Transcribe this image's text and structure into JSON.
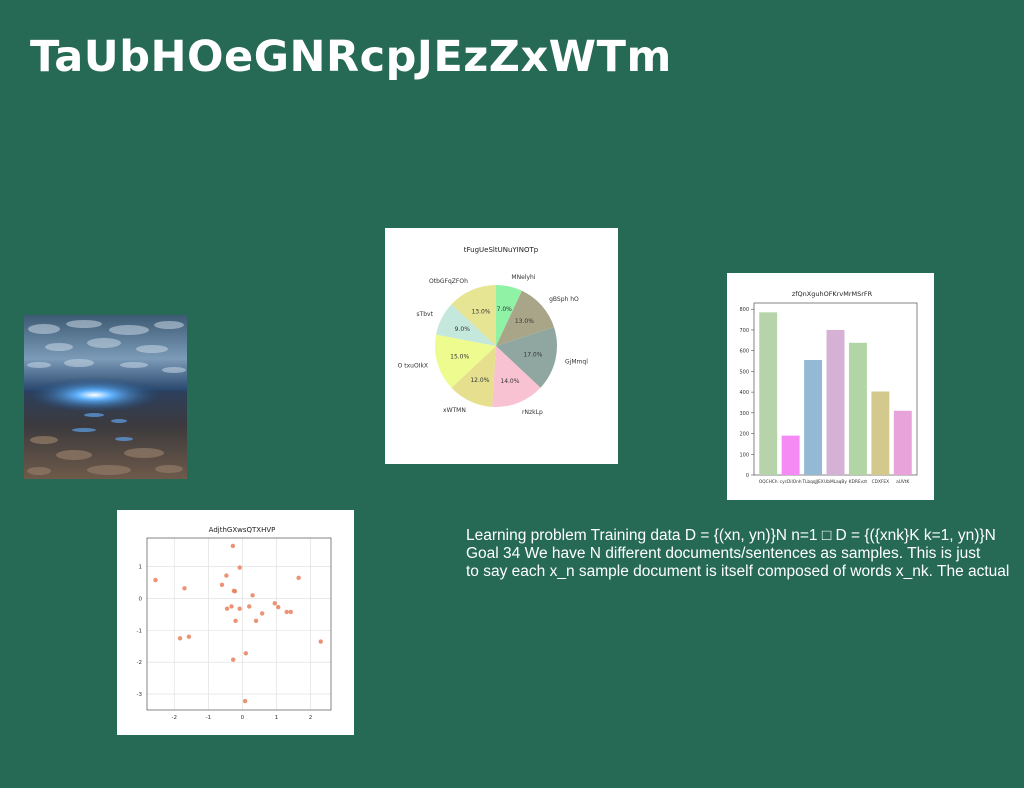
{
  "slide": {
    "title": "TaUbHOeGNRcpJEzZxWTm",
    "background": "#266a55",
    "text_lines": [
      "Learning problem Training data D = {(xn, yn)}N n=1 □ D = {({xnk}K k=1, yn)}N",
      "Goal 34 We have N different documents/sentences as samples. This is just",
      "to say each x_n sample document is itself composed of words x_nk. The actual"
    ]
  },
  "image": {
    "icon": "night-sky-over-tidal-flats-photo"
  },
  "chart_data": [
    {
      "type": "pie",
      "title": "tFugUeSltUNuYINOTp",
      "labels": [
        "MNelyhi",
        "gBSph hO",
        "GjMmql",
        "rNzkLp",
        "xWTMN",
        "O txuOIkX",
        "sTbvt",
        "OtbGFqZFOh"
      ],
      "values": [
        7.0,
        13.0,
        17.0,
        14.0,
        12.0,
        15.0,
        9.0,
        13.0
      ],
      "value_labels": [
        "7.0%",
        "13.0%",
        "17.0%",
        "14.0%",
        "12.0%",
        "15.0%",
        "9.0%",
        "13.0%"
      ],
      "colors": [
        "#8ff2a5",
        "#a8a588",
        "#8fa7a0",
        "#f9c2d2",
        "#e5df8e",
        "#eefb8e",
        "#c5e8dc",
        "#e6e594"
      ]
    },
    {
      "type": "bar",
      "title": "zfQnXguhOFKrvMrMSrFR",
      "categories": [
        "OQCHCh",
        "cycDiIOnh",
        "TLbqqJJEX",
        "UbMLaqBy",
        "KDREvzt",
        "CDXFEX",
        "aUVtK"
      ],
      "values": [
        785,
        190,
        555,
        700,
        638,
        403,
        310
      ],
      "colors": [
        "#b6d3a9",
        "#f58af5",
        "#93b9d4",
        "#d6b1d6",
        "#b1d5a4",
        "#d3c98d",
        "#e7a3da"
      ],
      "yticks": [
        0,
        100,
        200,
        300,
        400,
        500,
        600,
        700,
        800
      ],
      "ylim": [
        0,
        830
      ]
    },
    {
      "type": "scatter",
      "title": "AdjthGXwsQTXHVP",
      "xlim": [
        -2.8,
        2.6
      ],
      "ylim": [
        -3.5,
        1.9
      ],
      "xticks": [
        -2,
        -1,
        0,
        1,
        2
      ],
      "yticks": [
        -3,
        -2,
        -1,
        0,
        1
      ],
      "grid": true,
      "color": "#e8805c",
      "points": [
        [
          -2.55,
          0.58
        ],
        [
          -1.7,
          0.32
        ],
        [
          -1.83,
          -1.25
        ],
        [
          -1.57,
          -1.2
        ],
        [
          -0.6,
          0.43
        ],
        [
          -0.47,
          0.72
        ],
        [
          -0.45,
          -0.32
        ],
        [
          -0.32,
          -0.25
        ],
        [
          -0.28,
          1.65
        ],
        [
          -0.25,
          0.24
        ],
        [
          -0.22,
          0.23
        ],
        [
          -0.2,
          -0.7
        ],
        [
          -0.27,
          -1.92
        ],
        [
          -0.08,
          0.97
        ],
        [
          -0.08,
          -0.32
        ],
        [
          0.1,
          -1.72
        ],
        [
          0.08,
          -3.22
        ],
        [
          0.2,
          -0.25
        ],
        [
          0.3,
          0.1
        ],
        [
          0.4,
          -0.7
        ],
        [
          0.58,
          -0.47
        ],
        [
          0.95,
          -0.15
        ],
        [
          1.05,
          -0.27
        ],
        [
          1.3,
          -0.42
        ],
        [
          1.42,
          -0.42
        ],
        [
          1.65,
          0.65
        ],
        [
          2.3,
          -1.35
        ]
      ]
    }
  ]
}
